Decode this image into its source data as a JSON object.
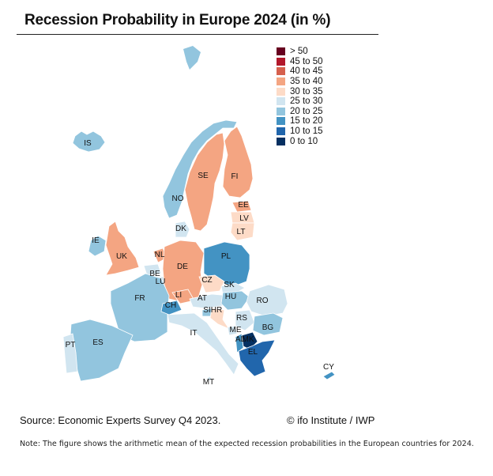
{
  "title": "Recession Probability in Europe 2024 (in %)",
  "legend": {
    "items": [
      {
        "label": "> 50",
        "color": "#67001f"
      },
      {
        "label": "45 to 50",
        "color": "#b2182b"
      },
      {
        "label": "40 to 45",
        "color": "#d6604d"
      },
      {
        "label": "35 to 40",
        "color": "#f4a582"
      },
      {
        "label": "30 to 35",
        "color": "#fddbc7"
      },
      {
        "label": "25 to 30",
        "color": "#d1e5f0"
      },
      {
        "label": "20 to 25",
        "color": "#92c5de"
      },
      {
        "label": "15 to 20",
        "color": "#4393c3"
      },
      {
        "label": "10 to 15",
        "color": "#2166ac"
      },
      {
        "label": "0 to 10",
        "color": "#053061"
      }
    ]
  },
  "countries": [
    {
      "code": "IS",
      "bin": "20 to 25"
    },
    {
      "code": "NO",
      "bin": "20 to 25"
    },
    {
      "code": "SE",
      "bin": "35 to 40"
    },
    {
      "code": "FI",
      "bin": "35 to 40"
    },
    {
      "code": "EE",
      "bin": "35 to 40"
    },
    {
      "code": "LV",
      "bin": "30 to 35"
    },
    {
      "code": "LT",
      "bin": "30 to 35"
    },
    {
      "code": "DK",
      "bin": "25 to 30"
    },
    {
      "code": "IE",
      "bin": "20 to 25"
    },
    {
      "code": "UK",
      "bin": "35 to 40"
    },
    {
      "code": "NL",
      "bin": "35 to 40"
    },
    {
      "code": "BE",
      "bin": "25 to 30"
    },
    {
      "code": "LU",
      "bin": "25 to 30"
    },
    {
      "code": "DE",
      "bin": "35 to 40"
    },
    {
      "code": "PL",
      "bin": "15 to 20"
    },
    {
      "code": "CZ",
      "bin": "30 to 35"
    },
    {
      "code": "SK",
      "bin": "25 to 30"
    },
    {
      "code": "FR",
      "bin": "20 to 25"
    },
    {
      "code": "LI",
      "bin": "35 to 40"
    },
    {
      "code": "AT",
      "bin": "25 to 30"
    },
    {
      "code": "HU",
      "bin": "20 to 25"
    },
    {
      "code": "RO",
      "bin": "25 to 30"
    },
    {
      "code": "CH",
      "bin": "15 to 20"
    },
    {
      "code": "SI",
      "bin": "20 to 25"
    },
    {
      "code": "HR",
      "bin": "30 to 35"
    },
    {
      "code": "RS",
      "bin": "25 to 30"
    },
    {
      "code": "ME",
      "bin": "25 to 30"
    },
    {
      "code": "BG",
      "bin": "20 to 25"
    },
    {
      "code": "IT",
      "bin": "25 to 30"
    },
    {
      "code": "ES",
      "bin": "20 to 25"
    },
    {
      "code": "PT",
      "bin": "25 to 30"
    },
    {
      "code": "AL",
      "bin": "15 to 20"
    },
    {
      "code": "MK",
      "bin": "0 to 10"
    },
    {
      "code": "EL",
      "bin": "10 to 15"
    },
    {
      "code": "CY",
      "bin": "15 to 20"
    },
    {
      "code": "MT",
      "bin": "25 to 30"
    }
  ],
  "source": "Source: Economic Experts Survey Q4 2023.",
  "copyright": "© ifo Institute / IWP",
  "note": "Note: The figure shows the arithmetic mean of the expected recession probabilities in the European countries for 2024."
}
